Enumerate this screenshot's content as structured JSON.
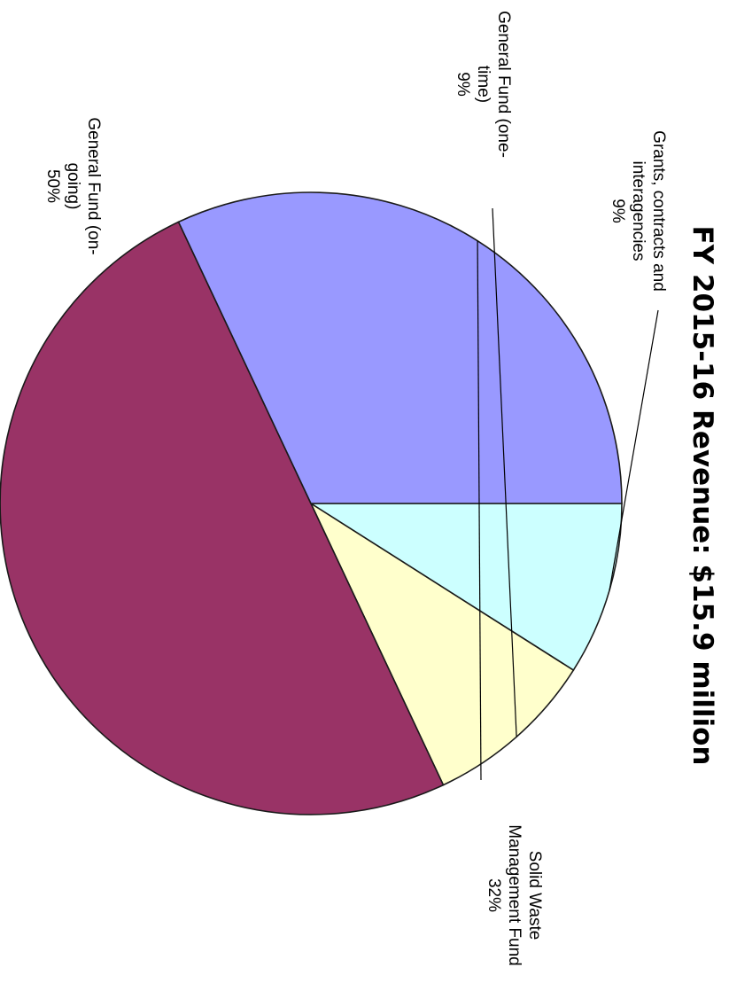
{
  "chart_data": {
    "type": "pie",
    "title": "FY 2015-16 Revenue: $15.9 million",
    "slices": [
      {
        "label_lines": [
          "Grants, contracts and",
          "interagencies",
          "9%"
        ],
        "value": 9,
        "color": "#ccffff"
      },
      {
        "label_lines": [
          "General Fund (one-",
          "time)",
          "9%"
        ],
        "value": 9,
        "color": "#ffffcc"
      },
      {
        "label_lines": [
          "General Fund (on-",
          "going)",
          "50%"
        ],
        "value": 50,
        "color": "#993366"
      },
      {
        "label_lines": [
          "Solid Waste",
          "Management Fund",
          "32%"
        ],
        "value": 32,
        "color": "#9999ff"
      }
    ]
  }
}
